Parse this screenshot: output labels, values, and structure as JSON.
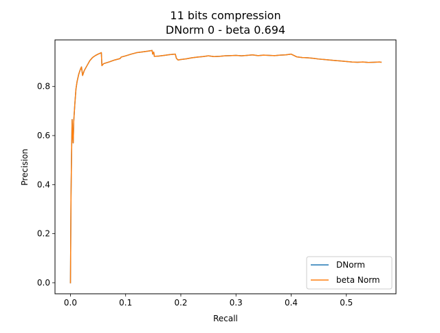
{
  "chart_data": {
    "type": "line",
    "title": "11 bits compression",
    "subtitle": "DNorm 0 - beta 0.694",
    "xlabel": "Recall",
    "ylabel": "Precision",
    "xlim": [
      -0.028,
      0.59
    ],
    "ylim": [
      -0.045,
      0.99
    ],
    "xticks": [
      0.0,
      0.1,
      0.2,
      0.3,
      0.4,
      0.5
    ],
    "xtick_labels": [
      "0.0",
      "0.1",
      "0.2",
      "0.3",
      "0.4",
      "0.5"
    ],
    "yticks": [
      0.0,
      0.2,
      0.4,
      0.6,
      0.8
    ],
    "ytick_labels": [
      "0.0",
      "0.2",
      "0.4",
      "0.6",
      "0.8"
    ],
    "grid": false,
    "legend_position": "lower-right",
    "series": [
      {
        "name": "DNorm",
        "color": "#1f77b4",
        "x": [
          0.0,
          0.001,
          0.002,
          0.003,
          0.004,
          0.005,
          0.006,
          0.008,
          0.01,
          0.012,
          0.015,
          0.018,
          0.02,
          0.022,
          0.025,
          0.03,
          0.035,
          0.04,
          0.045,
          0.05,
          0.056,
          0.057,
          0.06,
          0.07,
          0.08,
          0.09,
          0.092,
          0.1,
          0.11,
          0.12,
          0.13,
          0.14,
          0.148,
          0.149,
          0.15,
          0.151,
          0.152,
          0.16,
          0.17,
          0.18,
          0.19,
          0.192,
          0.195,
          0.2,
          0.21,
          0.22,
          0.23,
          0.24,
          0.25,
          0.26,
          0.27,
          0.28,
          0.29,
          0.3,
          0.31,
          0.32,
          0.33,
          0.34,
          0.35,
          0.36,
          0.37,
          0.38,
          0.39,
          0.4,
          0.41,
          0.42,
          0.43,
          0.44,
          0.45,
          0.46,
          0.47,
          0.48,
          0.49,
          0.5,
          0.51,
          0.52,
          0.53,
          0.54,
          0.55,
          0.56,
          0.563
        ],
        "y": [
          0.0,
          0.35,
          0.52,
          0.665,
          0.6,
          0.57,
          0.66,
          0.73,
          0.79,
          0.82,
          0.85,
          0.87,
          0.88,
          0.845,
          0.865,
          0.885,
          0.905,
          0.918,
          0.926,
          0.932,
          0.938,
          0.885,
          0.893,
          0.9,
          0.908,
          0.914,
          0.92,
          0.925,
          0.932,
          0.938,
          0.941,
          0.944,
          0.947,
          0.932,
          0.937,
          0.94,
          0.923,
          0.924,
          0.927,
          0.93,
          0.932,
          0.915,
          0.908,
          0.91,
          0.913,
          0.917,
          0.92,
          0.922,
          0.925,
          0.922,
          0.923,
          0.925,
          0.926,
          0.927,
          0.925,
          0.927,
          0.929,
          0.926,
          0.928,
          0.927,
          0.926,
          0.928,
          0.929,
          0.932,
          0.921,
          0.918,
          0.917,
          0.915,
          0.912,
          0.91,
          0.908,
          0.906,
          0.904,
          0.902,
          0.9,
          0.899,
          0.9,
          0.898,
          0.899,
          0.9,
          0.899
        ]
      },
      {
        "name": "beta Norm",
        "color": "#ff7f0e",
        "x": [
          0.0,
          0.001,
          0.002,
          0.003,
          0.004,
          0.005,
          0.006,
          0.008,
          0.01,
          0.012,
          0.015,
          0.018,
          0.02,
          0.022,
          0.025,
          0.03,
          0.035,
          0.04,
          0.045,
          0.05,
          0.056,
          0.057,
          0.06,
          0.07,
          0.08,
          0.09,
          0.092,
          0.1,
          0.11,
          0.12,
          0.13,
          0.14,
          0.148,
          0.149,
          0.15,
          0.151,
          0.152,
          0.16,
          0.17,
          0.18,
          0.19,
          0.192,
          0.195,
          0.2,
          0.21,
          0.22,
          0.23,
          0.24,
          0.25,
          0.26,
          0.27,
          0.28,
          0.29,
          0.3,
          0.31,
          0.32,
          0.33,
          0.34,
          0.35,
          0.36,
          0.37,
          0.38,
          0.39,
          0.4,
          0.41,
          0.42,
          0.43,
          0.44,
          0.45,
          0.46,
          0.47,
          0.48,
          0.49,
          0.5,
          0.51,
          0.52,
          0.53,
          0.54,
          0.55,
          0.56,
          0.563
        ],
        "y": [
          0.0,
          0.35,
          0.52,
          0.665,
          0.6,
          0.57,
          0.66,
          0.73,
          0.79,
          0.82,
          0.85,
          0.87,
          0.88,
          0.845,
          0.865,
          0.885,
          0.905,
          0.918,
          0.926,
          0.932,
          0.938,
          0.885,
          0.893,
          0.9,
          0.908,
          0.914,
          0.92,
          0.925,
          0.932,
          0.938,
          0.941,
          0.944,
          0.947,
          0.932,
          0.937,
          0.94,
          0.923,
          0.924,
          0.927,
          0.93,
          0.932,
          0.915,
          0.908,
          0.91,
          0.913,
          0.917,
          0.92,
          0.922,
          0.925,
          0.922,
          0.923,
          0.925,
          0.926,
          0.927,
          0.925,
          0.927,
          0.929,
          0.926,
          0.928,
          0.927,
          0.926,
          0.928,
          0.929,
          0.932,
          0.921,
          0.918,
          0.917,
          0.915,
          0.912,
          0.91,
          0.908,
          0.906,
          0.904,
          0.902,
          0.9,
          0.899,
          0.9,
          0.898,
          0.899,
          0.9,
          0.899
        ]
      }
    ]
  }
}
